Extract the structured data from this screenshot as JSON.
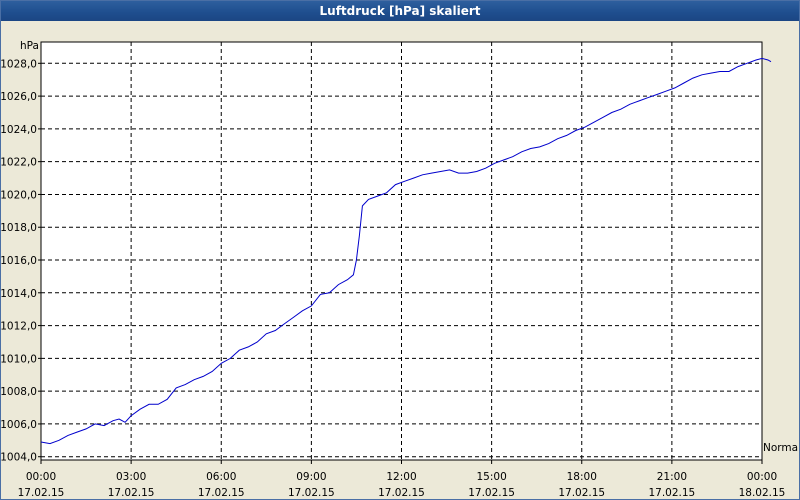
{
  "window": {
    "title": "Luftdruck [hPa] skaliert"
  },
  "chart_data": {
    "type": "line",
    "title": "Luftdruck [hPa] skaliert",
    "ylabel": "hPa",
    "xlabel": "",
    "ylim": [
      1003.8,
      1029.3
    ],
    "xlim_hours": [
      0,
      24
    ],
    "grid": true,
    "legend": "Normal",
    "line_color": "#0000cc",
    "y_ticks": [
      {
        "value": 1004,
        "label": "1004,0"
      },
      {
        "value": 1006,
        "label": "1006,0"
      },
      {
        "value": 1008,
        "label": "1008,0"
      },
      {
        "value": 1010,
        "label": "1010,0"
      },
      {
        "value": 1012,
        "label": "1012,0"
      },
      {
        "value": 1014,
        "label": "1014,0"
      },
      {
        "value": 1016,
        "label": "1016,0"
      },
      {
        "value": 1018,
        "label": "1018,0"
      },
      {
        "value": 1020,
        "label": "1020,0"
      },
      {
        "value": 1022,
        "label": "1022,0"
      },
      {
        "value": 1024,
        "label": "1024,0"
      },
      {
        "value": 1026,
        "label": "1026,0"
      },
      {
        "value": 1028,
        "label": "1028,0"
      }
    ],
    "x_ticks": [
      {
        "hour": 0,
        "time": "00:00",
        "date": "17.02.15"
      },
      {
        "hour": 3,
        "time": "03:00",
        "date": "17.02.15"
      },
      {
        "hour": 6,
        "time": "06:00",
        "date": "17.02.15"
      },
      {
        "hour": 9,
        "time": "09:00",
        "date": "17.02.15"
      },
      {
        "hour": 12,
        "time": "12:00",
        "date": "17.02.15"
      },
      {
        "hour": 15,
        "time": "15:00",
        "date": "17.02.15"
      },
      {
        "hour": 18,
        "time": "18:00",
        "date": "17.02.15"
      },
      {
        "hour": 21,
        "time": "21:00",
        "date": "17.02.15"
      },
      {
        "hour": 24,
        "time": "00:00",
        "date": "18.02.15"
      }
    ],
    "series": [
      {
        "name": "Normal",
        "points": [
          [
            0.0,
            1004.9
          ],
          [
            0.3,
            1004.8
          ],
          [
            0.6,
            1005.0
          ],
          [
            0.9,
            1005.3
          ],
          [
            1.2,
            1005.5
          ],
          [
            1.5,
            1005.7
          ],
          [
            1.8,
            1006.0
          ],
          [
            2.1,
            1005.9
          ],
          [
            2.4,
            1006.2
          ],
          [
            2.6,
            1006.3
          ],
          [
            2.8,
            1006.1
          ],
          [
            3.0,
            1006.5
          ],
          [
            3.3,
            1006.9
          ],
          [
            3.6,
            1007.2
          ],
          [
            3.9,
            1007.2
          ],
          [
            4.2,
            1007.5
          ],
          [
            4.5,
            1008.2
          ],
          [
            4.8,
            1008.4
          ],
          [
            5.1,
            1008.7
          ],
          [
            5.4,
            1008.9
          ],
          [
            5.7,
            1009.2
          ],
          [
            6.0,
            1009.7
          ],
          [
            6.3,
            1010.0
          ],
          [
            6.6,
            1010.5
          ],
          [
            6.9,
            1010.7
          ],
          [
            7.2,
            1011.0
          ],
          [
            7.5,
            1011.5
          ],
          [
            7.8,
            1011.7
          ],
          [
            8.1,
            1012.1
          ],
          [
            8.4,
            1012.5
          ],
          [
            8.7,
            1012.9
          ],
          [
            9.0,
            1013.2
          ],
          [
            9.3,
            1013.9
          ],
          [
            9.6,
            1014.0
          ],
          [
            9.9,
            1014.5
          ],
          [
            10.2,
            1014.8
          ],
          [
            10.4,
            1015.1
          ],
          [
            10.5,
            1016.0
          ],
          [
            10.6,
            1017.5
          ],
          [
            10.7,
            1019.3
          ],
          [
            10.9,
            1019.7
          ],
          [
            11.2,
            1019.9
          ],
          [
            11.5,
            1020.1
          ],
          [
            11.8,
            1020.6
          ],
          [
            12.1,
            1020.8
          ],
          [
            12.4,
            1021.0
          ],
          [
            12.7,
            1021.2
          ],
          [
            13.0,
            1021.3
          ],
          [
            13.3,
            1021.4
          ],
          [
            13.6,
            1021.5
          ],
          [
            13.9,
            1021.3
          ],
          [
            14.2,
            1021.3
          ],
          [
            14.5,
            1021.4
          ],
          [
            14.8,
            1021.6
          ],
          [
            15.1,
            1021.9
          ],
          [
            15.4,
            1022.1
          ],
          [
            15.7,
            1022.3
          ],
          [
            16.0,
            1022.6
          ],
          [
            16.3,
            1022.8
          ],
          [
            16.6,
            1022.9
          ],
          [
            16.9,
            1023.1
          ],
          [
            17.2,
            1023.4
          ],
          [
            17.5,
            1023.6
          ],
          [
            17.8,
            1023.9
          ],
          [
            18.1,
            1024.1
          ],
          [
            18.4,
            1024.4
          ],
          [
            18.7,
            1024.7
          ],
          [
            19.0,
            1025.0
          ],
          [
            19.3,
            1025.2
          ],
          [
            19.6,
            1025.5
          ],
          [
            19.9,
            1025.7
          ],
          [
            20.2,
            1025.9
          ],
          [
            20.5,
            1026.1
          ],
          [
            20.8,
            1026.3
          ],
          [
            21.1,
            1026.5
          ],
          [
            21.4,
            1026.8
          ],
          [
            21.7,
            1027.1
          ],
          [
            22.0,
            1027.3
          ],
          [
            22.3,
            1027.4
          ],
          [
            22.6,
            1027.5
          ],
          [
            22.9,
            1027.5
          ],
          [
            23.2,
            1027.8
          ],
          [
            23.5,
            1028.0
          ],
          [
            23.8,
            1028.2
          ],
          [
            24.0,
            1028.3
          ],
          [
            24.2,
            1028.2
          ],
          [
            24.3,
            1028.1
          ]
        ]
      }
    ]
  }
}
